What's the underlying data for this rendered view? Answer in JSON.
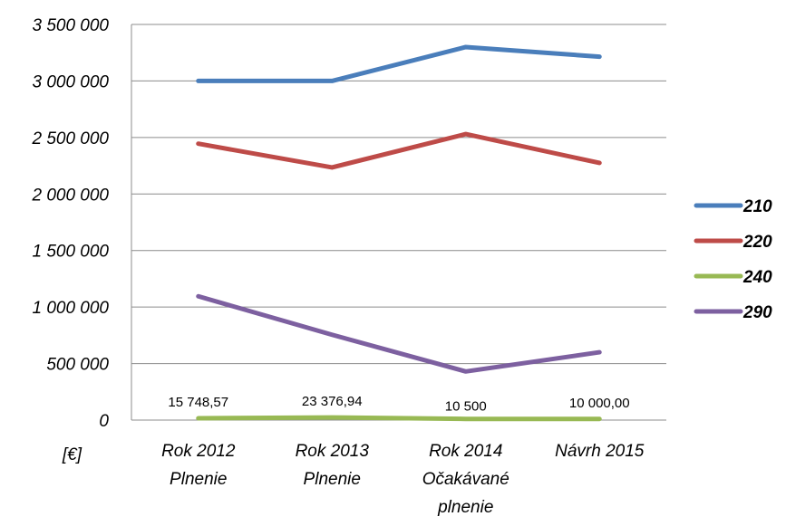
{
  "chart_data": {
    "type": "line",
    "categories": [
      [
        "Rok 2012",
        "Plnenie"
      ],
      [
        "Rok 2013",
        "Plnenie"
      ],
      [
        "Rok 2014",
        "Očakávané",
        "plnenie"
      ],
      [
        "Návrh 2015"
      ]
    ],
    "series": [
      {
        "name": "210",
        "color": "#4a7ebb",
        "values": [
          3000000,
          3000000,
          3300000,
          3215000
        ]
      },
      {
        "name": "220",
        "color": "#be4b48",
        "values": [
          2445000,
          2235000,
          2530000,
          2275000
        ]
      },
      {
        "name": "240",
        "color": "#98b954",
        "values": [
          15748.57,
          23376.94,
          10500,
          10000
        ],
        "data_labels": [
          "15 748,57",
          "23 376,94",
          "10 500",
          "10 000,00"
        ]
      },
      {
        "name": "290",
        "color": "#7d60a0",
        "values": [
          1095000,
          755000,
          430000,
          600000
        ]
      }
    ],
    "ylim": [
      0,
      3500000
    ],
    "y_ticks": [
      0,
      500000,
      1000000,
      1500000,
      2000000,
      2500000,
      3000000,
      3500000
    ],
    "y_tick_labels": [
      "0",
      "500 000",
      "1 000 000",
      "1 500 000",
      "2 000 000",
      "2 500 000",
      "3 000 000",
      "3 500 000"
    ],
    "ylabel": "[€]",
    "grid": true,
    "legend_position": "right"
  }
}
